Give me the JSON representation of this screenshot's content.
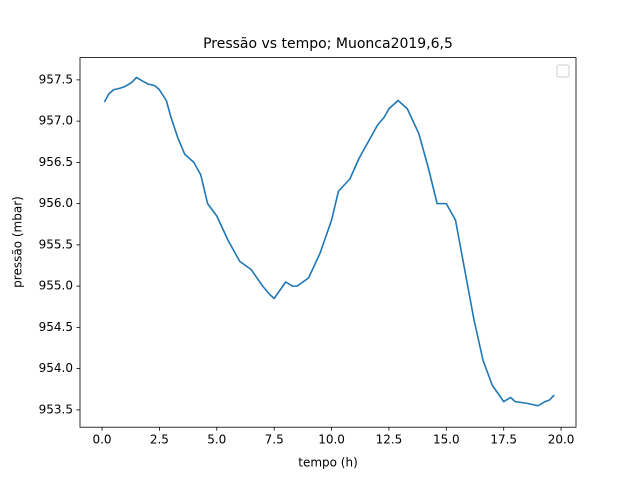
{
  "chart_data": {
    "type": "line",
    "title": "Pressão vs tempo; Muonca2019,6,5",
    "xlabel": "tempo (h)",
    "ylabel": "pressão (mbar)",
    "x": [
      0.1,
      0.3,
      0.5,
      0.8,
      1.0,
      1.3,
      1.5,
      1.8,
      2.0,
      2.3,
      2.5,
      2.8,
      3.0,
      3.3,
      3.6,
      4.0,
      4.3,
      4.6,
      5.0,
      5.5,
      6.0,
      6.5,
      7.0,
      7.3,
      7.5,
      8.0,
      8.3,
      8.5,
      9.0,
      9.5,
      10.0,
      10.3,
      10.8,
      11.2,
      11.6,
      12.0,
      12.3,
      12.5,
      12.9,
      13.3,
      13.8,
      14.2,
      14.6,
      15.0,
      15.4,
      15.8,
      16.2,
      16.6,
      17.0,
      17.5,
      17.8,
      18.0,
      18.5,
      19.0,
      19.3,
      19.5,
      19.7
    ],
    "series": [
      {
        "color": "#1f77b4",
        "values": [
          957.23,
          957.33,
          957.38,
          957.4,
          957.42,
          957.47,
          957.53,
          957.48,
          957.45,
          957.43,
          957.38,
          957.25,
          957.05,
          956.8,
          956.6,
          956.5,
          956.35,
          956.0,
          955.85,
          955.55,
          955.3,
          955.2,
          955.0,
          954.9,
          954.85,
          955.05,
          955.0,
          955.0,
          955.1,
          955.4,
          955.8,
          956.15,
          956.3,
          956.55,
          956.75,
          956.95,
          957.05,
          957.15,
          957.25,
          957.15,
          956.85,
          956.45,
          956.0,
          956.0,
          955.8,
          955.2,
          954.6,
          954.1,
          953.8,
          953.6,
          953.65,
          953.6,
          953.58,
          953.55,
          953.6,
          953.62,
          953.68
        ]
      }
    ],
    "xlim": [
      -0.96,
      20.65
    ],
    "ylim": [
      953.29,
      957.77
    ],
    "xticks": [
      {
        "value": 0,
        "label": "0.0"
      },
      2.5,
      {
        "value": 5,
        "label": "5.0"
      },
      7.5,
      {
        "value": 10,
        "label": "10.0"
      },
      12.5,
      {
        "value": 15,
        "label": "15.0"
      },
      17.5,
      {
        "value": 20,
        "label": "20.0"
      }
    ],
    "yticks": [
      {
        "value": 953.5,
        "label": "953.5"
      },
      {
        "value": 954,
        "label": "954.0"
      },
      {
        "value": 954.5,
        "label": "954.5"
      },
      {
        "value": 955,
        "label": "955.0"
      },
      {
        "value": 955.5,
        "label": "955.5"
      },
      {
        "value": 956,
        "label": "956.0"
      },
      {
        "value": 956.5,
        "label": "956.5"
      },
      {
        "value": 957,
        "label": "957.0"
      },
      {
        "value": 957.5,
        "label": "957.5"
      }
    ],
    "grid": false
  }
}
